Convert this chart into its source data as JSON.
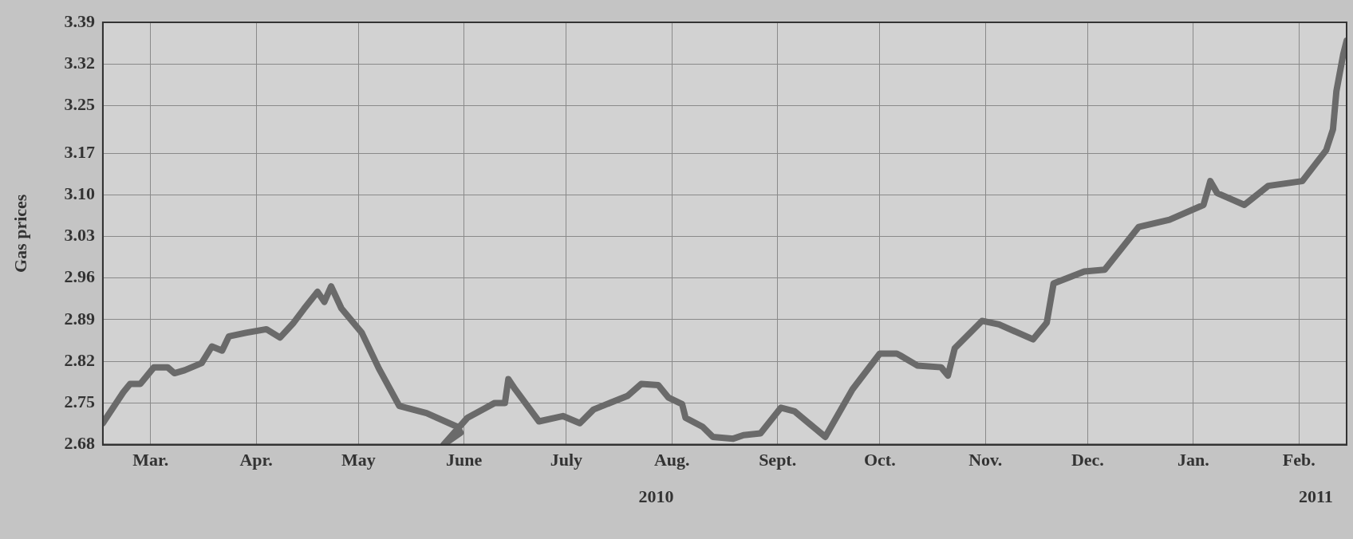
{
  "chart_data": {
    "type": "line",
    "ylabel": "Gas prices",
    "annotations": [
      "2010",
      "2011"
    ],
    "xlim": [
      "2010-03-01",
      "2011-03-01"
    ],
    "xticks": [
      {
        "value": "2010-03-15",
        "label": "Mar."
      },
      {
        "value": "2010-04-15",
        "label": "Apr."
      },
      {
        "value": "2010-05-15",
        "label": "May"
      },
      {
        "value": "2010-06-15",
        "label": "June"
      },
      {
        "value": "2010-07-15",
        "label": "July"
      },
      {
        "value": "2010-08-15",
        "label": "Aug."
      },
      {
        "value": "2010-09-15",
        "label": "Sept."
      },
      {
        "value": "2010-10-15",
        "label": "Oct."
      },
      {
        "value": "2010-11-15",
        "label": "Nov."
      },
      {
        "value": "2010-12-15",
        "label": "Dec."
      },
      {
        "value": "2011-01-15",
        "label": "Jan."
      },
      {
        "value": "2011-02-15",
        "label": "Feb."
      }
    ],
    "ylim": [
      2.68,
      3.39
    ],
    "yticks": [
      2.68,
      2.75,
      2.82,
      2.89,
      2.96,
      3.03,
      {
        "value": 3.1,
        "label": "3.10"
      },
      3.17,
      3.25,
      3.32,
      3.39
    ],
    "grid": true,
    "marker": "none",
    "x": [
      "2010-03-01",
      "2010-03-07",
      "2010-03-09",
      "2010-03-12",
      "2010-03-16",
      "2010-03-20",
      "2010-03-22",
      "2010-03-25",
      "2010-03-30",
      "2010-04-02",
      "2010-04-05",
      "2010-04-07",
      "2010-04-12",
      "2010-04-18",
      "2010-04-22",
      "2010-04-26",
      "2010-04-29",
      "2010-05-03",
      "2010-05-05",
      "2010-05-07",
      "2010-05-10",
      "2010-05-16",
      "2010-05-21",
      "2010-05-27",
      "2010-06-04",
      "2010-06-13",
      "2010-06-14",
      "2010-06-09",
      "2010-06-16",
      "2010-06-24",
      "2010-06-27",
      "2010-06-28",
      "2010-06-30",
      "2010-07-07",
      "2010-07-14",
      "2010-07-19",
      "2010-07-23",
      "2010-08-02",
      "2010-08-06",
      "2010-08-11",
      "2010-08-14",
      "2010-08-18",
      "2010-08-19",
      "2010-08-24",
      "2010-08-27",
      "2010-09-02",
      "2010-09-05",
      "2010-09-10",
      "2010-09-16",
      "2010-09-20",
      "2010-09-29",
      "2010-10-07",
      "2010-10-15",
      "2010-10-20",
      "2010-10-21",
      "2010-10-26",
      "2010-11-02",
      "2010-11-04",
      "2010-11-06",
      "2010-11-14",
      "2010-11-19",
      "2010-11-29",
      "2010-12-03",
      "2010-12-05",
      "2010-12-14",
      "2010-12-20",
      "2010-12-30",
      "2011-01-08",
      "2011-01-18",
      "2011-01-20",
      "2011-01-22",
      "2011-01-30",
      "2011-02-06",
      "2011-02-16",
      "2011-02-23",
      "2011-02-25",
      "2011-02-26",
      "2011-02-28",
      "2011-03-01"
    ],
    "series": [
      {
        "color": "#6a6a6a",
        "values": [
          2.716,
          2.768,
          2.782,
          2.782,
          2.81,
          2.81,
          2.8,
          2.805,
          2.817,
          2.845,
          2.838,
          2.862,
          2.868,
          2.874,
          2.86,
          2.885,
          2.908,
          2.937,
          2.92,
          2.946,
          2.909,
          2.868,
          2.808,
          2.745,
          2.733,
          2.71,
          2.7,
          2.68,
          2.725,
          2.75,
          2.75,
          2.79,
          2.773,
          2.719,
          2.728,
          2.716,
          2.739,
          2.762,
          2.782,
          2.78,
          2.759,
          2.748,
          2.725,
          2.71,
          2.693,
          2.69,
          2.696,
          2.699,
          2.742,
          2.736,
          2.693,
          2.773,
          2.833,
          2.833,
          2.83,
          2.813,
          2.81,
          2.796,
          2.842,
          2.888,
          2.882,
          2.857,
          2.885,
          2.951,
          2.971,
          2.974,
          3.046,
          3.058,
          3.083,
          3.123,
          3.103,
          3.083,
          3.115,
          3.123,
          3.175,
          3.21,
          3.274,
          3.336,
          3.359
        ]
      }
    ]
  }
}
